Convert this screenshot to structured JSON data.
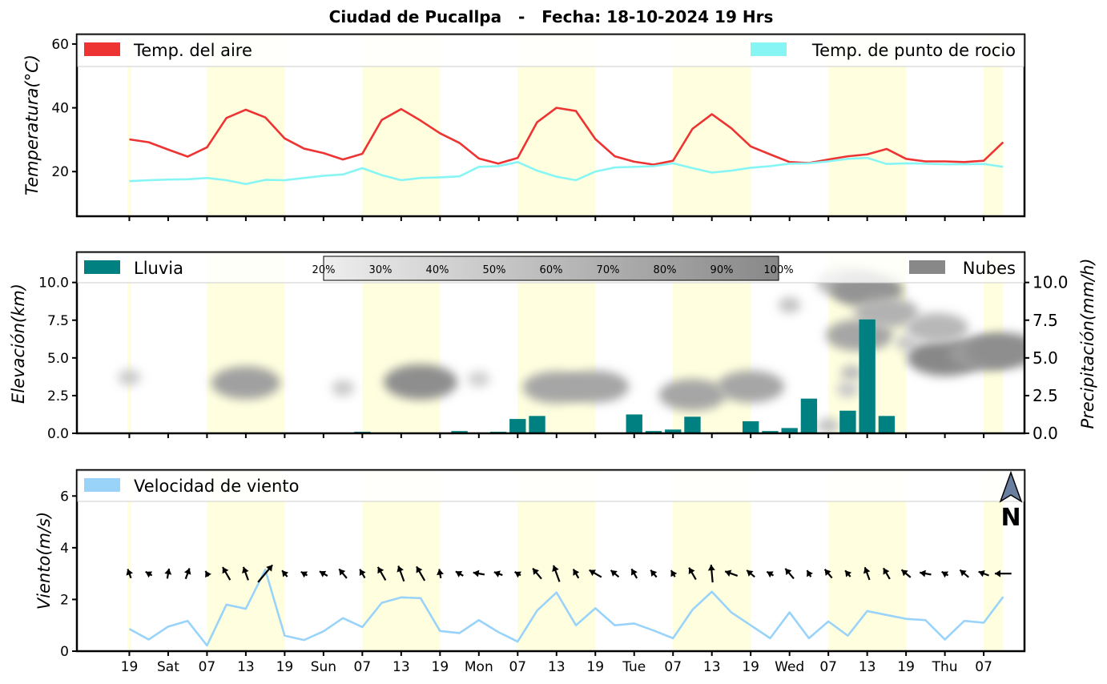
{
  "title": "Ciudad de Pucallpa   -   Fecha: 18-10-2024 19 Hrs",
  "north_label": "N",
  "colors": {
    "air_temp": "#ee3333",
    "dew_point": "#88f5f5",
    "rain": "#008080",
    "clouds": "#888888",
    "wind_speed": "#99d3fa",
    "day_band": "#ffffe0"
  },
  "x_tick_labels": [
    "19",
    "Sat",
    "07",
    "13",
    "19",
    "Sun",
    "07",
    "13",
    "19",
    "Mon",
    "07",
    "13",
    "19",
    "Tue",
    "07",
    "13",
    "19",
    "Wed",
    "07",
    "13",
    "19",
    "Thu",
    "07"
  ],
  "day_bands": [
    [
      2,
      4
    ],
    [
      6,
      8
    ],
    [
      10,
      12
    ],
    [
      14,
      16
    ],
    [
      18,
      20
    ],
    [
      22,
      22.5
    ]
  ],
  "chart_data": [
    {
      "type": "line",
      "ylabel": "Temperatura(°C)",
      "ylim": [
        6,
        63
      ],
      "y_ticks": [
        20,
        40,
        60
      ],
      "x_range": [
        -1.35,
        23.05
      ],
      "legend_placement": "top",
      "series": [
        {
          "name": "Temp. del aire",
          "x": [
            0,
            0.5,
            1,
            1.5,
            2,
            2.5,
            3,
            3.5,
            4,
            4.5,
            5,
            5.5,
            6,
            6.5,
            7,
            7.5,
            8,
            8.5,
            9,
            9.5,
            10,
            10.5,
            11,
            11.5,
            12,
            12.5,
            13,
            13.5,
            14,
            14.5,
            15,
            15.5,
            16,
            16.5,
            17,
            17.5,
            18,
            18.5,
            19,
            19.5,
            20,
            20.5,
            21,
            21.5,
            22,
            22.5
          ],
          "values": [
            30.1,
            29.2,
            26.9,
            24.7,
            27.6,
            36.8,
            39.4,
            37.0,
            30.4,
            27.2,
            25.8,
            23.8,
            25.6,
            36.2,
            39.6,
            36.0,
            32.0,
            29.0,
            24.1,
            22.5,
            24.3,
            35.5,
            40.0,
            39.0,
            30.2,
            24.8,
            23.1,
            22.2,
            23.4,
            33.4,
            38.0,
            33.6,
            27.9,
            25.4,
            23.0,
            22.7,
            23.8,
            24.8,
            25.4,
            27.1,
            24.0,
            23.2,
            23.2,
            23.0,
            23.4,
            29.2
          ]
        },
        {
          "name": "Temp. de punto de rocio",
          "x": [
            0,
            0.5,
            1,
            1.5,
            2,
            2.5,
            3,
            3.5,
            4,
            4.5,
            5,
            5.5,
            6,
            6.5,
            7,
            7.5,
            8,
            8.5,
            9,
            9.5,
            10,
            10.5,
            11,
            11.5,
            12,
            12.5,
            13,
            13.5,
            14,
            14.5,
            15,
            15.5,
            16,
            16.5,
            17,
            17.5,
            18,
            18.5,
            19,
            19.5,
            20,
            20.5,
            21,
            21.5,
            22,
            22.5
          ],
          "values": [
            17.0,
            17.3,
            17.5,
            17.6,
            18.0,
            17.3,
            16.1,
            17.4,
            17.3,
            18.0,
            18.7,
            19.1,
            21.1,
            18.9,
            17.3,
            18.0,
            18.2,
            18.5,
            21.5,
            21.7,
            23.0,
            20.3,
            18.4,
            17.3,
            20.0,
            21.3,
            21.5,
            21.7,
            22.6,
            21.1,
            19.7,
            20.3,
            21.2,
            21.7,
            22.5,
            22.6,
            23.2,
            24.0,
            24.3,
            22.4,
            22.6,
            22.5,
            22.3,
            22.3,
            22.4,
            21.5
          ]
        }
      ]
    },
    {
      "type": "bar",
      "ylabel": "Elevación(km)",
      "ylim": [
        0,
        12
      ],
      "y_ticks": [
        0.0,
        2.5,
        5.0,
        7.5,
        10.0
      ],
      "right_ylabel": "Precipitación(mm/h)",
      "right_ylim": [
        0,
        12
      ],
      "right_y_ticks": [
        0.0,
        2.5,
        5.0,
        7.5,
        10.0
      ],
      "legend_placement": "top",
      "colorbar_labels": [
        "20%",
        "30%",
        "40%",
        "50%",
        "60%",
        "70%",
        "80%",
        "90%",
        "100%"
      ],
      "series": [
        {
          "name": "Lluvia",
          "x": [
            5.5,
            6,
            8.5,
            9.5,
            10,
            10.5,
            13,
            13.5,
            14,
            14.5,
            16,
            16.5,
            17,
            17.5,
            18.5,
            19,
            19.5
          ],
          "values": [
            0.05,
            0.1,
            0.15,
            0.1,
            0.95,
            1.15,
            1.25,
            0.15,
            0.25,
            1.1,
            0.8,
            0.15,
            0.35,
            2.3,
            1.5,
            7.55,
            1.15
          ]
        },
        {
          "name": "Nubes",
          "cloud_cells": [
            {
              "x": 0,
              "y": 3.7,
              "cover": 0.3
            },
            {
              "x": 3,
              "y": 3.35,
              "cover": 0.65
            },
            {
              "x": 5.5,
              "y": 3.0,
              "cover": 0.3
            },
            {
              "x": 7.5,
              "y": 3.4,
              "cover": 0.8
            },
            {
              "x": 9,
              "y": 3.6,
              "cover": 0.25
            },
            {
              "x": 11,
              "y": 3.05,
              "cover": 0.6
            },
            {
              "x": 12,
              "y": 3.1,
              "cover": 0.6
            },
            {
              "x": 14.5,
              "y": 2.55,
              "cover": 0.6
            },
            {
              "x": 16,
              "y": 3.1,
              "cover": 0.6
            },
            {
              "x": 17,
              "y": 8.5,
              "cover": 0.35
            },
            {
              "x": 18.5,
              "y": 10.0,
              "cover": 0.45
            },
            {
              "x": 19,
              "y": 9.5,
              "cover": 0.75
            },
            {
              "x": 18.8,
              "y": 6.5,
              "cover": 0.6
            },
            {
              "x": 18.6,
              "y": 4.0,
              "cover": 0.4
            },
            {
              "x": 19.5,
              "y": 8.0,
              "cover": 0.5
            },
            {
              "x": 20,
              "y": 6.0,
              "cover": 0.3
            },
            {
              "x": 21,
              "y": 5.0,
              "cover": 0.85
            },
            {
              "x": 20.8,
              "y": 7.0,
              "cover": 0.45
            },
            {
              "x": 22,
              "y": 5.3,
              "cover": 0.7
            },
            {
              "x": 22.5,
              "y": 5.5,
              "cover": 0.8
            },
            {
              "x": 18.0,
              "y": 0.5,
              "cover": 0.35
            },
            {
              "x": 18.5,
              "y": 2.9,
              "cover": 0.3
            }
          ]
        }
      ]
    },
    {
      "type": "line",
      "ylabel": "Viento(m/s)",
      "ylim": [
        0,
        7
      ],
      "y_ticks": [
        0,
        2,
        4,
        6
      ],
      "legend_placement": "top-left",
      "series": [
        {
          "name": "Velocidad de viento",
          "x": [
            0,
            0.5,
            1,
            1.5,
            2,
            2.5,
            3,
            3.5,
            4,
            4.5,
            5,
            5.5,
            6,
            6.5,
            7,
            7.5,
            8,
            8.5,
            9,
            9.5,
            10,
            10.5,
            11,
            11.5,
            12,
            12.5,
            13,
            13.5,
            14,
            14.5,
            15,
            15.5,
            16,
            16.5,
            17,
            17.5,
            18,
            18.5,
            19,
            19.5,
            20,
            20.5,
            21,
            21.5,
            22,
            22.5
          ],
          "values": [
            0.86,
            0.45,
            0.95,
            1.17,
            0.22,
            1.8,
            1.64,
            3.15,
            0.6,
            0.43,
            0.77,
            1.28,
            0.93,
            1.87,
            2.08,
            2.05,
            0.78,
            0.7,
            1.2,
            0.74,
            0.37,
            1.57,
            2.27,
            1.0,
            1.66,
            1.0,
            1.07,
            0.8,
            0.5,
            1.6,
            2.3,
            1.5,
            1.0,
            0.5,
            1.5,
            0.5,
            1.15,
            0.6,
            1.55,
            1.4,
            1.25,
            1.2,
            0.45,
            1.17,
            1.1,
            2.1
          ]
        }
      ],
      "wind_direction_deg": [
        340,
        300,
        10,
        20,
        330,
        330,
        340,
        40,
        320,
        300,
        300,
        320,
        330,
        330,
        340,
        330,
        350,
        300,
        280,
        290,
        300,
        320,
        340,
        330,
        300,
        310,
        330,
        320,
        330,
        330,
        355,
        290,
        310,
        300,
        320,
        330,
        320,
        320,
        340,
        330,
        310,
        280,
        300,
        310,
        290,
        270
      ]
    }
  ]
}
